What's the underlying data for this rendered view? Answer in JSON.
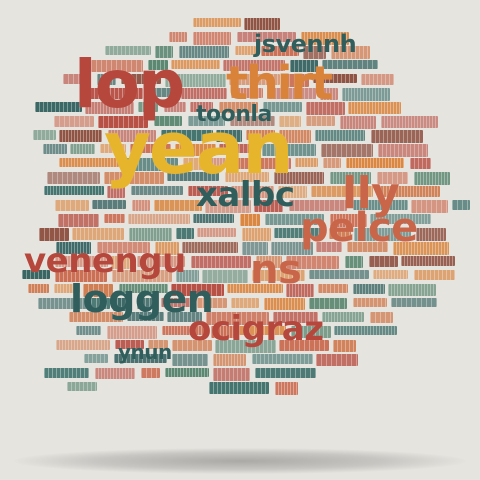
{
  "artwork": {
    "headline_words": {
      "lop": "lop",
      "yean": "yean",
      "thirt": "thirt",
      "xalbc": "xalbc",
      "pelce": "pelce",
      "venengu": "venengu",
      "ns": "ns",
      "loggen": "loggen",
      "ocigraz": "ocigraz",
      "lly": "lly",
      "jsvennh": "jsvennh",
      "toonla": "toonla",
      "ynun": "ynun"
    },
    "palette": {
      "background": "#e6e4df",
      "red": "#b5473c",
      "orange": "#d9823a",
      "yellow": "#e7b52b",
      "teal": "#2f5e5c",
      "green": "#55836c",
      "terracotta": "#c9664a"
    },
    "shape": "speech-bubble"
  }
}
